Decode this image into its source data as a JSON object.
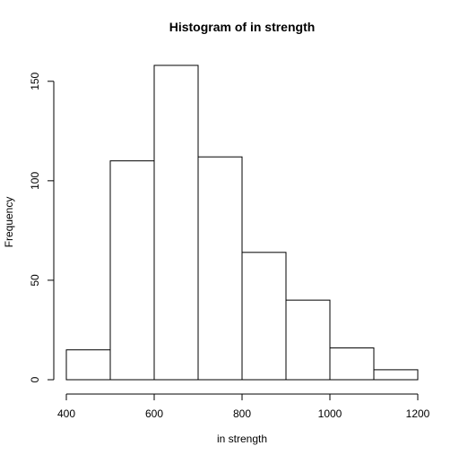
{
  "chart_data": {
    "type": "bar",
    "title": "Histogram of in strength",
    "xlabel": "in strength",
    "ylabel": "Frequency",
    "bins": [
      {
        "from": 400,
        "to": 500,
        "count": 15
      },
      {
        "from": 500,
        "to": 600,
        "count": 110
      },
      {
        "from": 600,
        "to": 700,
        "count": 158
      },
      {
        "from": 700,
        "to": 800,
        "count": 112
      },
      {
        "from": 800,
        "to": 900,
        "count": 64
      },
      {
        "from": 900,
        "to": 1000,
        "count": 40
      },
      {
        "from": 1000,
        "to": 1100,
        "count": 16
      },
      {
        "from": 1100,
        "to": 1200,
        "count": 5
      }
    ],
    "x_ticks": [
      400,
      600,
      800,
      1000,
      1200
    ],
    "y_ticks": [
      0,
      50,
      100,
      150
    ],
    "xlim": [
      400,
      1200
    ],
    "ylim": [
      0,
      158
    ],
    "grid": false,
    "bar_fill": "#ffffff",
    "bar_stroke": "#000000"
  }
}
